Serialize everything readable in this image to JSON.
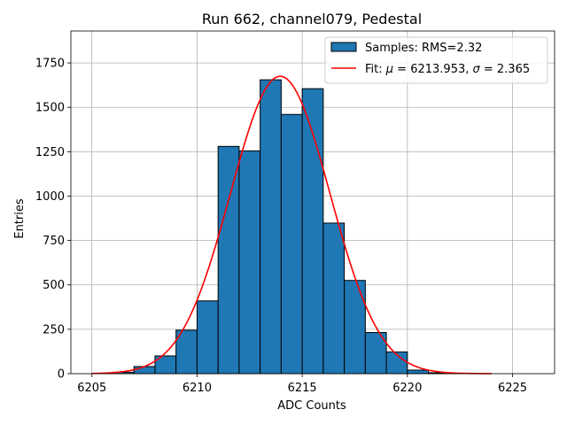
{
  "chart_data": {
    "type": "bar",
    "title": "Run 662, channel079, Pedestal",
    "xlabel": "ADC Counts",
    "ylabel": "Entries",
    "xlim": [
      6204,
      6227
    ],
    "ylim": [
      0,
      1930
    ],
    "x_ticks": [
      6205,
      6210,
      6215,
      6220,
      6225
    ],
    "y_ticks": [
      0,
      250,
      500,
      750,
      1000,
      1250,
      1500,
      1750
    ],
    "x_tick_labels": [
      "6205",
      "6210",
      "6215",
      "6220",
      "6225"
    ],
    "y_tick_labels": [
      "0",
      "250",
      "500",
      "750",
      "1000",
      "1250",
      "1500",
      "1750"
    ],
    "grid": true,
    "legend_position": "top-right",
    "bin_width": 1,
    "histogram": {
      "name": "Samples: RMS=2.32",
      "color": "#1f77b4",
      "bin_starts": [
        6205,
        6206,
        6207,
        6208,
        6209,
        6210,
        6211,
        6212,
        6213,
        6214,
        6215,
        6216,
        6217,
        6218,
        6219,
        6220,
        6221,
        6222,
        6223
      ],
      "values": [
        2,
        8,
        40,
        100,
        245,
        410,
        1280,
        1255,
        1655,
        1460,
        1605,
        848,
        525,
        232,
        122,
        20,
        5,
        1,
        0
      ]
    },
    "fit": {
      "name": "Fit: μ = 6213.953, σ = 2.365",
      "name_prefix": "Fit: ",
      "mu_symbol": "μ",
      "mu_text": " = 6213.953, ",
      "sigma_symbol": "σ",
      "sigma_text": " = 2.365",
      "color": "#ff0000",
      "mu": 6213.953,
      "sigma": 2.365,
      "amplitude": 1675,
      "x_range": [
        6205,
        6224
      ]
    }
  }
}
